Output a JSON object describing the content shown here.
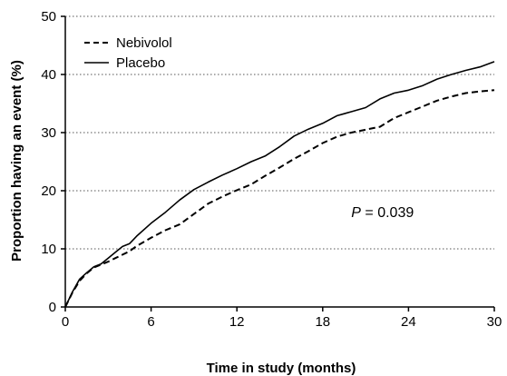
{
  "chart_data": {
    "type": "line",
    "title": "",
    "xlabel": "Time in study (months)",
    "ylabel": "Proportion having an event (%)",
    "xlim": [
      0,
      30
    ],
    "ylim": [
      0,
      50
    ],
    "x_ticks": [
      0,
      6,
      12,
      18,
      24,
      30
    ],
    "y_ticks": [
      0,
      10,
      20,
      30,
      40,
      50
    ],
    "grid": "horizontal dotted",
    "legend_position": "top-left",
    "series": [
      {
        "name": "Nebivolol",
        "style": "dashed",
        "color": "#000000",
        "x": [
          0,
          0.5,
          1,
          1.5,
          2,
          2.5,
          3,
          3.5,
          4,
          4.5,
          5,
          6,
          7,
          8,
          9,
          10,
          11,
          12,
          13,
          14,
          15,
          16,
          17,
          18,
          19,
          20,
          21,
          22,
          23,
          24,
          25,
          26,
          27,
          28,
          29,
          30
        ],
        "values": [
          0,
          2.5,
          4.5,
          5.8,
          6.8,
          7.3,
          7.8,
          8.4,
          9.0,
          9.6,
          10.5,
          11.9,
          13.2,
          14.2,
          16.0,
          17.8,
          19.0,
          20.1,
          21.1,
          22.6,
          24.0,
          25.5,
          26.8,
          28.2,
          29.3,
          30.0,
          30.5,
          31.0,
          32.5,
          33.5,
          34.5,
          35.5,
          36.2,
          36.8,
          37.1,
          37.3
        ]
      },
      {
        "name": "Placebo",
        "style": "solid",
        "color": "#000000",
        "x": [
          0,
          0.5,
          1,
          1.5,
          2,
          2.5,
          3,
          3.5,
          4,
          4.5,
          5,
          6,
          7,
          8,
          9,
          10,
          11,
          12,
          13,
          14,
          15,
          16,
          17,
          18,
          19,
          20,
          21,
          22,
          23,
          24,
          25,
          26,
          27,
          28,
          29,
          30
        ],
        "values": [
          0,
          2.6,
          4.8,
          5.9,
          6.9,
          7.4,
          8.4,
          9.4,
          10.4,
          10.9,
          12.2,
          14.4,
          16.3,
          18.4,
          20.2,
          21.5,
          22.7,
          23.8,
          25.0,
          26.0,
          27.6,
          29.4,
          30.6,
          31.6,
          32.9,
          33.6,
          34.3,
          35.8,
          36.8,
          37.3,
          38.1,
          39.2,
          40.0,
          40.7,
          41.3,
          42.2
        ]
      }
    ],
    "annotation": {
      "prefix": "P",
      "text": " = 0.039",
      "x": 20,
      "y": 15.5
    }
  }
}
